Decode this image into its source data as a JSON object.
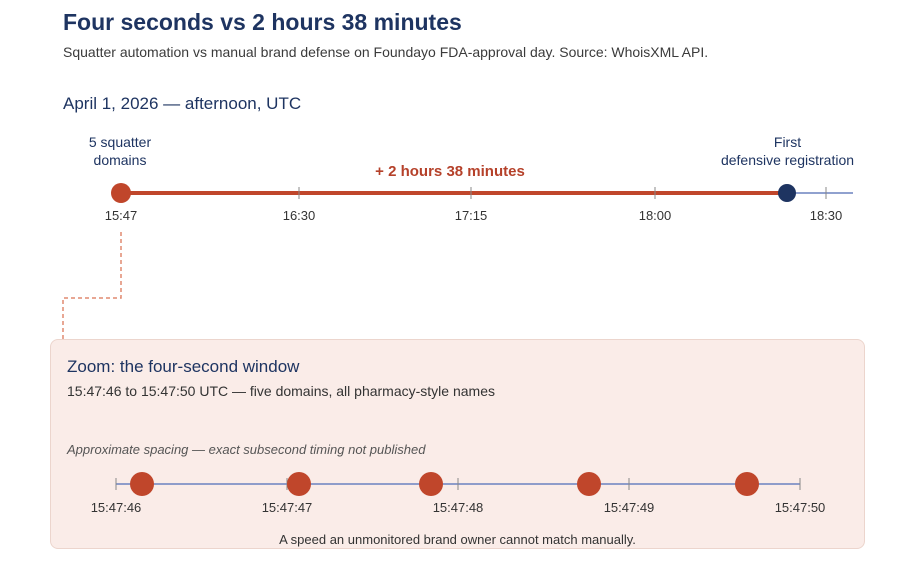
{
  "header": {
    "title": "Four seconds vs 2 hours 38 minutes",
    "subtitle": "Squatter automation vs manual brand defense on Foundayo FDA-approval day. Source: WhoisXML API."
  },
  "timeline": {
    "date_label": "April 1, 2026 — afternoon, UTC",
    "start_annotation": "5 squatter\ndomains",
    "end_annotation": "First\ndefensive registration",
    "duration_label": "+ 2 hours 38 minutes",
    "ticks": [
      "15:47",
      "16:30",
      "17:15",
      "18:00",
      "18:30"
    ],
    "start_time": "15:47",
    "end_time": "18:25",
    "colors": {
      "accent": "#c0462b",
      "defense": "#1e3461",
      "axis": "#6b82bf"
    }
  },
  "zoom": {
    "title": "Zoom: the four-second window",
    "subtitle": "15:47:46 to 15:47:50 UTC — five domains, all pharmacy-style names",
    "note": "Approximate spacing — exact subsecond timing not published",
    "ticks": [
      "15:47:46",
      "15:47:47",
      "15:47:48",
      "15:47:49",
      "15:47:50"
    ],
    "domain_count": 5,
    "footer": "A speed an unmonitored brand owner cannot match manually."
  }
}
